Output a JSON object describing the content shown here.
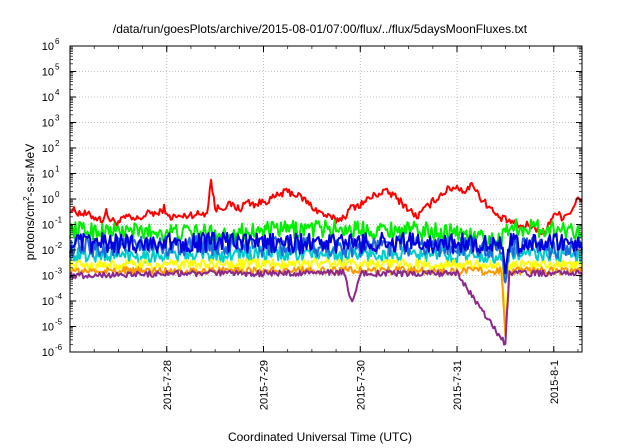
{
  "title": "/data/run/goesPlots/archive/2015-08-01/07:00/flux/../flux/5daysMoonFluxes.txt",
  "chart_data": {
    "type": "line",
    "xlabel": "Coordinated Universal Time (UTC)",
    "ylabel": {
      "prefix": "protons/cm",
      "exponent": "2",
      "suffix": "-s-sr-MeV"
    },
    "xlim": [
      "2015-07-27 00:00",
      "2015-08-01 07:00"
    ],
    "ylim": [
      1e-06,
      1000000
    ],
    "yscale": "log",
    "grid": true,
    "x_ticks": [
      "2015-7-28",
      "2015-7-29",
      "2015-7-30",
      "2015-7-31",
      "2015-8-1"
    ],
    "y_ticks": [
      {
        "base": "10",
        "exp": "-6"
      },
      {
        "base": "10",
        "exp": "-5"
      },
      {
        "base": "10",
        "exp": "-4"
      },
      {
        "base": "10",
        "exp": "-3"
      },
      {
        "base": "10",
        "exp": "-2"
      },
      {
        "base": "10",
        "exp": "-1"
      },
      {
        "base": "10",
        "exp": "0"
      },
      {
        "base": "10",
        "exp": "1"
      },
      {
        "base": "10",
        "exp": "2"
      },
      {
        "base": "10",
        "exp": "3"
      },
      {
        "base": "10",
        "exp": "4"
      },
      {
        "base": "10",
        "exp": "5"
      },
      {
        "base": "10",
        "exp": "6"
      }
    ],
    "series": [
      {
        "color": "#ff0000",
        "base": 0.3,
        "jitter": 0.15,
        "points": [
          [
            "07-27 00:00",
            0.4
          ],
          [
            "07-27 02:00",
            0.3
          ],
          [
            "07-27 04:00",
            0.25
          ],
          [
            "07-27 06:00",
            0.2
          ],
          [
            "07-27 08:00",
            0.15
          ],
          [
            "07-27 09:00",
            0.3
          ],
          [
            "07-27 10:00",
            0.15
          ],
          [
            "07-27 12:00",
            0.12
          ],
          [
            "07-27 14:00",
            0.2
          ],
          [
            "07-27 16:00",
            0.15
          ],
          [
            "07-27 18:00",
            0.2
          ],
          [
            "07-27 20:00",
            0.3
          ],
          [
            "07-27 22:00",
            0.25
          ],
          [
            "07-27 23:30",
            0.5
          ],
          [
            "07-28 00:00",
            0.2
          ],
          [
            "07-28 04:00",
            0.2
          ],
          [
            "07-28 06:00",
            0.25
          ],
          [
            "07-28 08:00",
            0.25
          ],
          [
            "07-28 10:00",
            0.3
          ],
          [
            "07-28 11:00",
            6
          ],
          [
            "07-28 12:00",
            0.4
          ],
          [
            "07-28 14:00",
            0.5
          ],
          [
            "07-28 16:00",
            0.6
          ],
          [
            "07-28 18:00",
            0.4
          ],
          [
            "07-28 20:00",
            0.8
          ],
          [
            "07-28 22:00",
            0.6
          ],
          [
            "07-29 00:00",
            0.8
          ],
          [
            "07-29 02:00",
            1.0
          ],
          [
            "07-29 04:00",
            1.5
          ],
          [
            "07-29 06:00",
            2.0
          ],
          [
            "07-29 08:00",
            1.5
          ],
          [
            "07-29 10:00",
            1.0
          ],
          [
            "07-29 12:00",
            0.5
          ],
          [
            "07-29 14:00",
            0.3
          ],
          [
            "07-29 16:00",
            0.2
          ],
          [
            "07-29 18:00",
            0.15
          ],
          [
            "07-29 20:00",
            0.2
          ],
          [
            "07-29 22:00",
            0.5
          ],
          [
            "07-30 00:00",
            0.6
          ],
          [
            "07-30 02:00",
            1.0
          ],
          [
            "07-30 04:00",
            1.5
          ],
          [
            "07-30 06:00",
            2.0
          ],
          [
            "07-30 08:00",
            1.5
          ],
          [
            "07-30 10:00",
            0.8
          ],
          [
            "07-30 12:00",
            0.4
          ],
          [
            "07-30 14:00",
            0.2
          ],
          [
            "07-30 16:00",
            0.4
          ],
          [
            "07-30 18:00",
            0.8
          ],
          [
            "07-30 20:00",
            1.5
          ],
          [
            "07-30 22:00",
            2.5
          ],
          [
            "07-31 00:00",
            3.0
          ],
          [
            "07-31 02:00",
            2.0
          ],
          [
            "07-31 04:00",
            4.0
          ],
          [
            "07-31 06:00",
            1.0
          ],
          [
            "07-31 08:00",
            0.5
          ],
          [
            "07-31 10:00",
            0.2
          ],
          [
            "07-31 12:00",
            0.15
          ],
          [
            "07-31 14:00",
            0.12
          ],
          [
            "07-31 16:00",
            0.08
          ],
          [
            "07-31 18:00",
            0.1
          ],
          [
            "07-31 20:00",
            0.06
          ],
          [
            "07-31 22:00",
            0.05
          ],
          [
            "08-01 00:00",
            0.3
          ],
          [
            "08-01 01:00",
            0.25
          ],
          [
            "08-01 02:00",
            0.2
          ],
          [
            "08-01 04:00",
            0.3
          ],
          [
            "08-01 06:00",
            1.0
          ],
          [
            "08-01 07:00",
            0.8
          ]
        ]
      },
      {
        "color": "#00ee00",
        "base": 0.06,
        "jitter": 0.35,
        "points": [
          [
            "07-27 00:00",
            0.06
          ],
          [
            "07-28 00:00",
            0.05
          ],
          [
            "07-28 12:00",
            0.045
          ],
          [
            "07-29 12:00",
            0.07
          ],
          [
            "07-30 12:00",
            0.06
          ],
          [
            "07-31 00:00",
            0.05
          ],
          [
            "07-31 11:00",
            0.02
          ],
          [
            "07-31 12:00",
            0.08
          ],
          [
            "08-01 07:00",
            0.06
          ]
        ]
      },
      {
        "color": "#00cccc",
        "base": 0.006,
        "jitter": 0.3,
        "points": [
          [
            "07-27 00:00",
            0.006
          ],
          [
            "07-29 12:00",
            0.007
          ],
          [
            "07-31 11:00",
            0.006
          ],
          [
            "07-31 12:00",
            0.0008
          ],
          [
            "07-31 13:00",
            0.007
          ],
          [
            "08-01 07:00",
            0.006
          ]
        ]
      },
      {
        "color": "#1f6ad8",
        "base": 0.012,
        "jitter": 0.4,
        "points": [
          [
            "07-27 00:00",
            0.012
          ],
          [
            "07-28 12:00",
            0.015
          ],
          [
            "07-29 12:00",
            0.012
          ],
          [
            "07-30 12:00",
            0.015
          ],
          [
            "07-31 11:00",
            0.012
          ],
          [
            "07-31 12:00",
            0.0004
          ],
          [
            "07-31 13:00",
            0.012
          ],
          [
            "08-01 07:00",
            0.012
          ]
        ]
      },
      {
        "color": "#0000dd",
        "base": 0.018,
        "jitter": 0.4,
        "points": [
          [
            "07-27 00:00",
            0.018
          ],
          [
            "07-28 12:00",
            0.02
          ],
          [
            "07-29 12:00",
            0.018
          ],
          [
            "07-30 12:00",
            0.02
          ],
          [
            "07-31 11:00",
            0.018
          ],
          [
            "07-31 12:00",
            0.0006
          ],
          [
            "07-31 13:00",
            0.018
          ],
          [
            "08-01 07:00",
            0.018
          ]
        ]
      },
      {
        "color": "#ffff00",
        "base": 0.0025,
        "jitter": 0.2,
        "points": [
          [
            "07-27 00:00",
            0.0025
          ],
          [
            "07-29 12:00",
            0.003
          ],
          [
            "07-31 11:00",
            0.0025
          ],
          [
            "07-31 12:00",
            1e-05
          ],
          [
            "07-31 13:00",
            0.0025
          ],
          [
            "08-01 07:00",
            0.0025
          ]
        ]
      },
      {
        "color": "#ff9900",
        "base": 0.0015,
        "jitter": 0.15,
        "points": [
          [
            "07-27 00:00",
            0.0015
          ],
          [
            "07-29 12:00",
            0.0016
          ],
          [
            "07-31 11:00",
            0.0015
          ],
          [
            "07-31 12:00",
            5e-06
          ],
          [
            "07-31 13:00",
            0.0015
          ],
          [
            "08-01 07:00",
            0.0015
          ]
        ]
      },
      {
        "color": "#8b2a8b",
        "base": 0.0012,
        "jitter": 0.12,
        "points": [
          [
            "07-27 00:00",
            0.001
          ],
          [
            "07-28 00:00",
            0.0012
          ],
          [
            "07-29 00:00",
            0.0012
          ],
          [
            "07-29 20:00",
            0.0013
          ],
          [
            "07-29 22:00",
            8e-05
          ],
          [
            "07-30 00:00",
            0.0012
          ],
          [
            "07-31 00:00",
            0.0012
          ],
          [
            "07-31 12:00",
            2e-06
          ],
          [
            "07-31 13:00",
            0.0012
          ],
          [
            "08-01 07:00",
            0.0012
          ]
        ]
      }
    ]
  }
}
